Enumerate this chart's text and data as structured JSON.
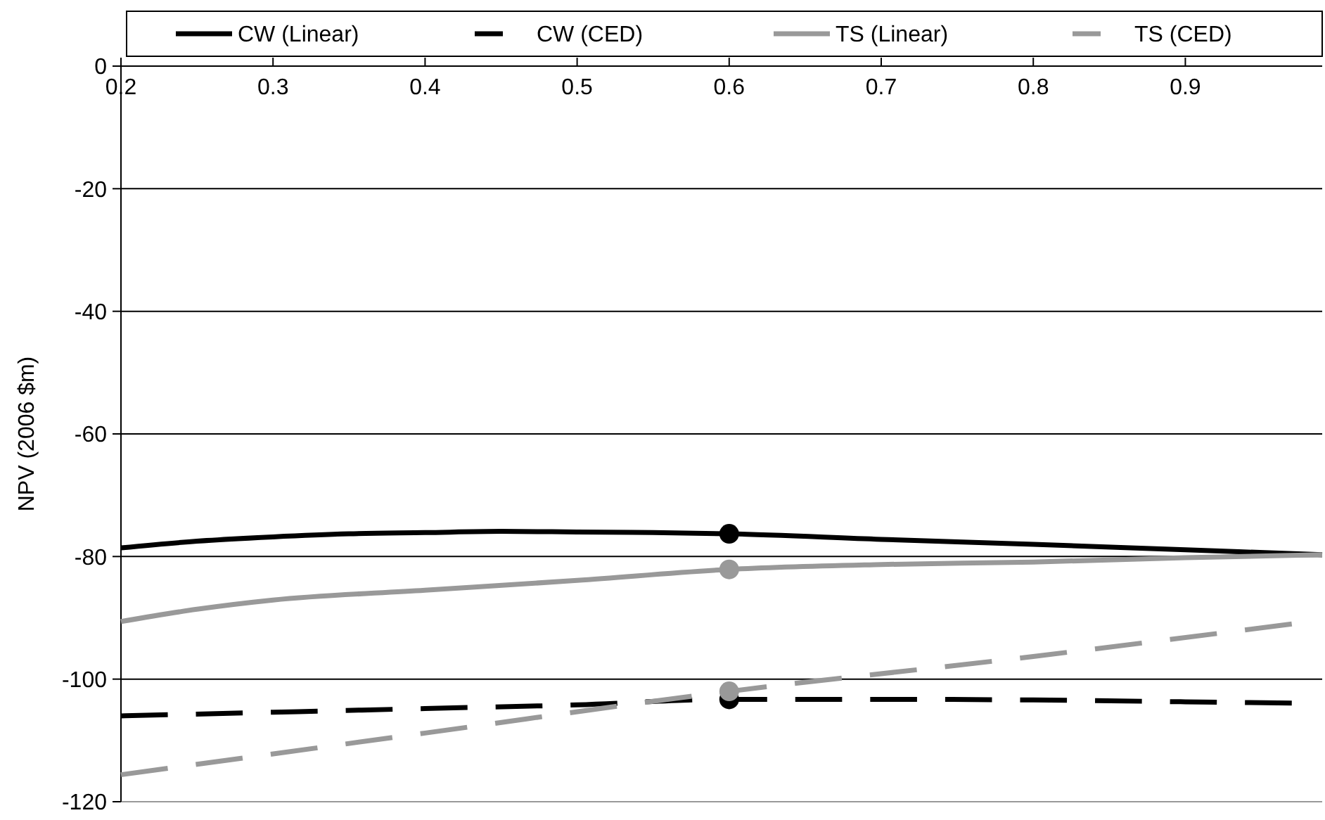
{
  "chart_data": {
    "type": "line",
    "ylabel": "NPV (2006 $m)",
    "xlim": [
      0.2,
      0.99
    ],
    "xticks": [
      {
        "value": 0.2,
        "label": "0.2"
      },
      0.3,
      0.4,
      0.5,
      0.6,
      0.7,
      0.8,
      0.9
    ],
    "ylim": [
      -120,
      0
    ],
    "yticks": [
      -120,
      -100,
      -80,
      -60,
      -40,
      -20,
      0
    ],
    "grid": "y",
    "legend": "top",
    "line_style": "solid",
    "series": [
      {
        "name": "CW (Linear)",
        "color": "#000000",
        "x": [
          0.2,
          0.25,
          0.3,
          0.35,
          0.4,
          0.45,
          0.5,
          0.55,
          0.6,
          0.7,
          0.8,
          0.9,
          0.99
        ],
        "values": [
          -78.6,
          -77.5,
          -76.8,
          -76.3,
          -76.1,
          -75.9,
          -76,
          -76.1,
          -76.3,
          -77.2,
          -78,
          -78.9,
          -79.7
        ]
      },
      {
        "name": "CW (CED)",
        "color": "#000000",
        "line_style": "dashed",
        "x": [
          0.2,
          0.3,
          0.4,
          0.5,
          0.6,
          0.7,
          0.8,
          0.9,
          0.97
        ],
        "values": [
          -106,
          -105.4,
          -104.8,
          -104.2,
          -103.3,
          -103.3,
          -103.4,
          -103.7,
          -103.9
        ]
      },
      {
        "name": "TS (Linear)",
        "color": "#999999",
        "x": [
          0.2,
          0.25,
          0.3,
          0.4,
          0.5,
          0.6,
          0.7,
          0.8,
          0.9,
          0.99
        ],
        "values": [
          -90.6,
          -88.6,
          -87.1,
          -85.5,
          -83.9,
          -82.1,
          -81.3,
          -80.9,
          -80.2,
          -79.7
        ]
      },
      {
        "name": "TS (CED)",
        "color": "#999999",
        "line_style": "dashed",
        "x": [
          0.2,
          0.4,
          0.6,
          0.8,
          0.97
        ],
        "values": [
          -115.6,
          -108.8,
          -102,
          -96.3,
          -91
        ]
      },
      {
        "type": "scatter",
        "marker": "circle",
        "color": "#000000",
        "x": [
          0.6,
          0.6
        ],
        "values": [
          -76.3,
          -103.3
        ]
      },
      {
        "type": "scatter",
        "marker": "circle",
        "color": "#999999",
        "x": [
          0.6,
          0.6
        ],
        "values": [
          -82.1,
          -102
        ]
      }
    ]
  }
}
